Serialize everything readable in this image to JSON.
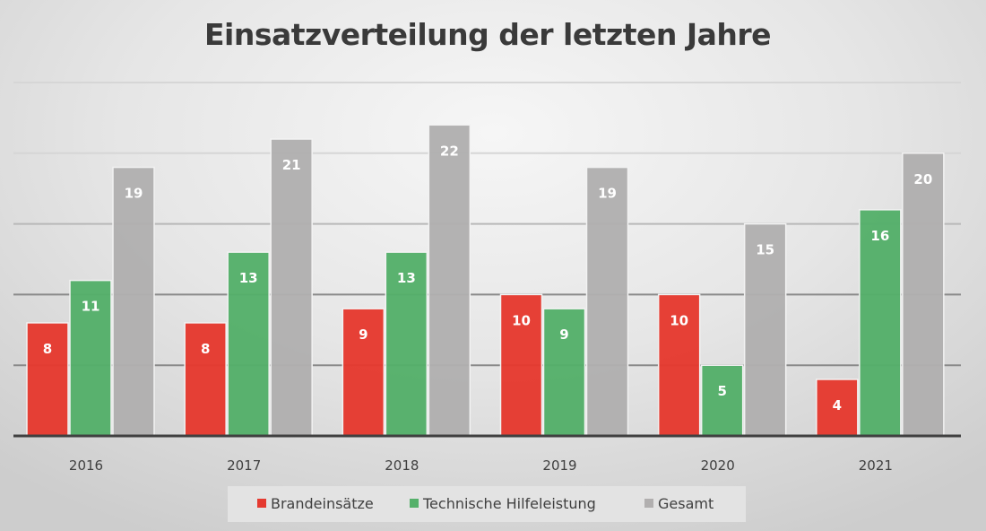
{
  "chart_data": {
    "type": "bar",
    "title": "Einsatzverteilung der letzten Jahre",
    "xlabel": "",
    "ylabel": "",
    "categories": [
      "2016",
      "2017",
      "2018",
      "2019",
      "2020",
      "2021"
    ],
    "series": [
      {
        "name": "Brandeinsätze",
        "color": "#e53a30",
        "values": [
          8,
          8,
          9,
          10,
          10,
          4
        ]
      },
      {
        "name": "Technische Hilfeleistung",
        "color": "#55b06a",
        "values": [
          11,
          13,
          13,
          9,
          5,
          16
        ]
      },
      {
        "name": "Gesamt",
        "color": "#b1afaf",
        "values": [
          19,
          21,
          22,
          19,
          15,
          20
        ]
      }
    ],
    "ylim": [
      0,
      25
    ],
    "gridline_step": 5,
    "y_tick_labels_visible": false,
    "grid": true,
    "data_labels": "inside-end",
    "legend": "bottom"
  }
}
